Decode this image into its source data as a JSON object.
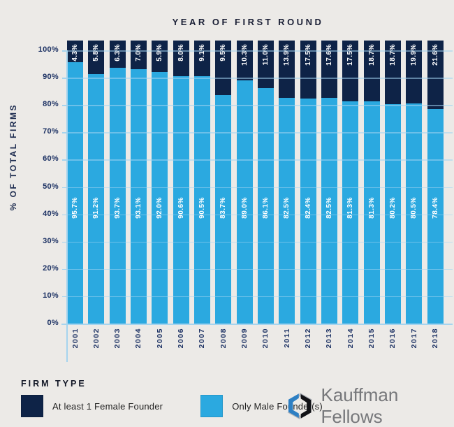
{
  "chart_data": {
    "type": "bar",
    "stacked": true,
    "percent_stacked": true,
    "title": "YEAR OF FIRST ROUND",
    "xlabel": "",
    "ylabel": "% OF TOTAL FIRMS",
    "ylim": [
      0,
      100
    ],
    "grid": true,
    "legend_position": "bottom-left",
    "y_ticks": [
      "100%",
      "90%",
      "80%",
      "70%",
      "60%",
      "50%",
      "40%",
      "30%",
      "20%",
      "10%",
      "0%"
    ],
    "categories": [
      "2001",
      "2002",
      "2003",
      "2004",
      "2005",
      "2006",
      "2007",
      "2008",
      "2009",
      "2010",
      "2011",
      "2012",
      "2013",
      "2014",
      "2015",
      "2016",
      "2017",
      "2018"
    ],
    "series": [
      {
        "name": "At least 1 Female Founder",
        "color": "#0E2347",
        "values": [
          4.3,
          5.8,
          6.3,
          7.0,
          5.9,
          8.0,
          9.1,
          9.5,
          10.3,
          11.0,
          13.9,
          17.5,
          17.6,
          17.5,
          18.7,
          18.7,
          19.9,
          21.6
        ],
        "labels": [
          "4.3%",
          "5.8%",
          "6.3%",
          "7.0%",
          "5.9%",
          "8.0%",
          "9.1%",
          "9.5%",
          "10.3%",
          "11.0%",
          "13.9%",
          "17.5%",
          "17.6%",
          "17.5%",
          "18.7%",
          "18.7%",
          "19.9%",
          "21.6%"
        ]
      },
      {
        "name": "Only Male Founder(s)",
        "color": "#2BA9E0",
        "values": [
          95.7,
          91.2,
          93.7,
          93.1,
          92.0,
          90.6,
          90.5,
          83.7,
          89.0,
          86.1,
          82.5,
          82.4,
          82.5,
          81.3,
          81.3,
          80.2,
          80.5,
          78.4
        ],
        "labels": [
          "95.7%",
          "91.2%",
          "93.7%",
          "93.1%",
          "92.0%",
          "90.6%",
          "90.5%",
          "83.7%",
          "89.0%",
          "86.1%",
          "82.5%",
          "82.4%",
          "82.5%",
          "81.3%",
          "81.3%",
          "80.2%",
          "80.5%",
          "78.4%"
        ]
      }
    ]
  },
  "legend": {
    "title": "FIRM TYPE",
    "items": [
      {
        "label": "At least 1 Female Founder",
        "color": "#0E2347"
      },
      {
        "label": "Only Male Founder(s)",
        "color": "#2BA9E0"
      }
    ]
  },
  "logo": {
    "text": "Kauffman Fellows"
  }
}
